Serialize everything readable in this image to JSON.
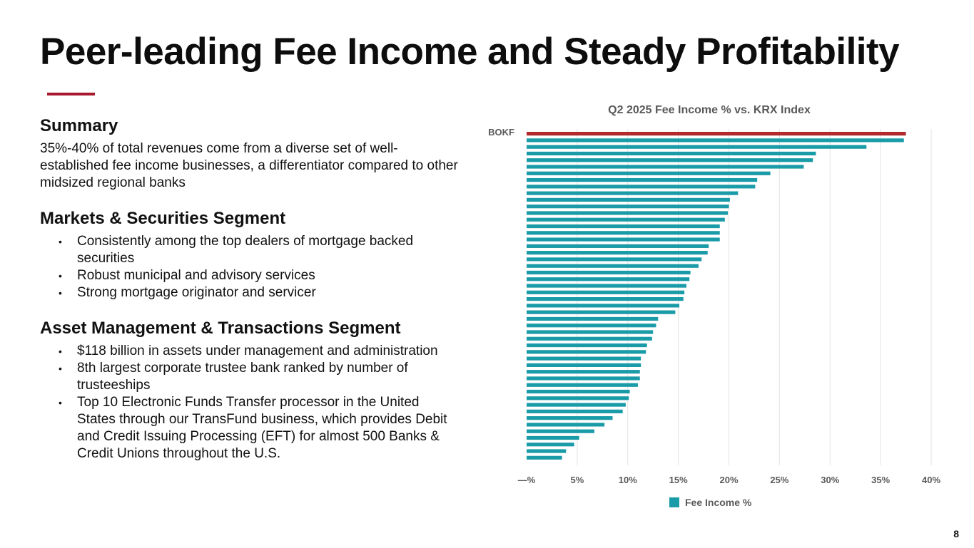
{
  "slide": {
    "title": "Peer-leading Fee Income and Steady Profitability",
    "page_number": "8",
    "accent_color": "#a6192e"
  },
  "summary": {
    "heading": "Summary",
    "text": "35%-40% of total revenues come from a diverse set of well-established fee income businesses, a differentiator compared to other midsized regional banks"
  },
  "markets": {
    "heading": "Markets & Securities Segment",
    "bullets": [
      "Consistently among the top dealers of mortgage backed securities",
      "Robust municipal and advisory services",
      "Strong mortgage originator and servicer"
    ]
  },
  "asset_mgmt": {
    "heading": "Asset Management & Transactions Segment",
    "bullets": [
      "$118 billion in assets under management and administration",
      "8th largest corporate trustee bank ranked by number of trusteeships",
      "Top 10 Electronic Funds Transfer processor in the United States through our TransFund business, which provides Debit and Credit Issuing Processing (EFT) for almost 500 Banks & Credit Unions throughout the U.S."
    ]
  },
  "bullet_glyph": "•",
  "chart_data": {
    "type": "bar",
    "orientation": "horizontal",
    "title": "Q2 2025 Fee Income % vs. KRX Index",
    "xlabel": "",
    "ylabel": "",
    "xlim": [
      0,
      40
    ],
    "x_ticks": [
      "—%",
      "5%",
      "10%",
      "15%",
      "20%",
      "25%",
      "30%",
      "35%",
      "40%"
    ],
    "x_tick_values": [
      0,
      5,
      10,
      15,
      20,
      25,
      30,
      35,
      40
    ],
    "grid": true,
    "highlight": {
      "label": "BOKF",
      "value": 37.5,
      "color": "#b2292e"
    },
    "series": [
      {
        "name": "Fee Income %",
        "color": "#1a9ba8",
        "values": [
          37.3,
          33.6,
          28.6,
          28.3,
          27.4,
          24.1,
          22.8,
          22.6,
          20.9,
          20.1,
          20.0,
          19.9,
          19.6,
          19.1,
          19.1,
          19.1,
          18.0,
          17.9,
          17.3,
          17.0,
          16.2,
          16.1,
          15.8,
          15.6,
          15.5,
          15.1,
          14.7,
          13.0,
          12.8,
          12.5,
          12.4,
          11.9,
          11.8,
          11.3,
          11.3,
          11.2,
          11.2,
          11.0,
          10.2,
          10.1,
          9.8,
          9.5,
          8.5,
          7.7,
          6.7,
          5.2,
          4.7,
          3.9,
          3.5
        ]
      }
    ],
    "legend": {
      "label": "Fee Income %",
      "position": "bottom"
    }
  }
}
